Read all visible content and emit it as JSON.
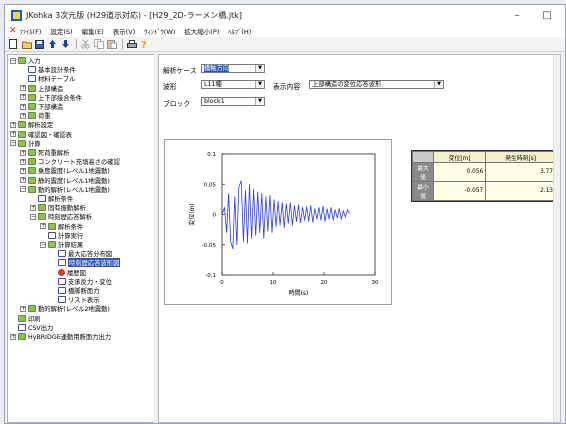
{
  "window": {
    "title": "JKohka 3次元版 (H29道示対応) - [H29_2D-ラーメン橋.jtk]",
    "minimize_glyph": "–",
    "maximize_glyph": "□"
  },
  "menu": {
    "items": [
      "ﾌｧｲﾙ(F)",
      "設定(S)",
      "編集(E)",
      "表示(V)",
      "ｳｨﾝﾄﾞｳ(W)",
      "拡大縮小(P)",
      "ﾍﾙﾌﾟ(H)"
    ]
  },
  "toolbar": {
    "icons": [
      "new-file-icon",
      "open-folder-icon",
      "save-icon",
      "move-up-icon",
      "move-down-icon",
      "cut-icon",
      "copy-icon",
      "paste-icon",
      "print-icon",
      "help-icon"
    ]
  },
  "tree": {
    "items": [
      {
        "label": "入力",
        "level": 0,
        "toggle": "−",
        "icon": "folder"
      },
      {
        "label": "基本設計条件",
        "level": 1,
        "toggle": "",
        "icon": "doc"
      },
      {
        "label": "材料テーブル",
        "level": 1,
        "toggle": "",
        "icon": "doc"
      },
      {
        "label": "上部構造",
        "level": 1,
        "toggle": "+",
        "icon": "folder"
      },
      {
        "label": "上下部接合条件",
        "level": 1,
        "toggle": "+",
        "icon": "folder"
      },
      {
        "label": "下部構造",
        "level": 1,
        "toggle": "+",
        "icon": "folder"
      },
      {
        "label": "荷重",
        "level": 1,
        "toggle": "+",
        "icon": "folder"
      },
      {
        "label": "解析設定",
        "level": 0,
        "toggle": "+",
        "icon": "folder"
      },
      {
        "label": "確認図・確認表",
        "level": 0,
        "toggle": "+",
        "icon": "folder"
      },
      {
        "label": "計算",
        "level": 0,
        "toggle": "−",
        "icon": "folder"
      },
      {
        "label": "死荷重解析",
        "level": 1,
        "toggle": "+",
        "icon": "folder"
      },
      {
        "label": "コンクリート充填高さの確認",
        "level": 1,
        "toggle": "+",
        "icon": "folder"
      },
      {
        "label": "乗度震度(レベル1地震動)",
        "level": 1,
        "toggle": "+",
        "icon": "folder"
      },
      {
        "label": "静的震度(レベル1地震動)",
        "level": 1,
        "toggle": "+",
        "icon": "folder"
      },
      {
        "label": "動的解析(レベル1地震動)",
        "level": 1,
        "toggle": "−",
        "icon": "folder"
      },
      {
        "label": "解析条件",
        "level": 2,
        "toggle": "",
        "icon": "doc"
      },
      {
        "label": "固有振動解析",
        "level": 2,
        "toggle": "+",
        "icon": "folder"
      },
      {
        "label": "時刻歴応答解析",
        "level": 2,
        "toggle": "−",
        "icon": "folder"
      },
      {
        "label": "解析条件",
        "level": 3,
        "toggle": "+",
        "icon": "folder"
      },
      {
        "label": "計算実行",
        "level": 3,
        "toggle": "",
        "icon": "doc"
      },
      {
        "label": "計算結果",
        "level": 3,
        "toggle": "−",
        "icon": "folder"
      },
      {
        "label": "最大応答分布図",
        "level": 4,
        "toggle": "",
        "icon": "doc"
      },
      {
        "label": "時刻歴応答波形図",
        "level": 4,
        "toggle": "",
        "icon": "doc",
        "selected": true
      },
      {
        "label": "履歴図",
        "level": 4,
        "toggle": "",
        "icon": "red"
      },
      {
        "label": "支承反力・変位",
        "level": 4,
        "toggle": "",
        "icon": "doc"
      },
      {
        "label": "橋脚断面力",
        "level": 4,
        "toggle": "",
        "icon": "doc"
      },
      {
        "label": "リスト表示",
        "level": 4,
        "toggle": "",
        "icon": "doc"
      },
      {
        "label": "動的解析(レベル2地震動)",
        "level": 1,
        "toggle": "+",
        "icon": "folder"
      },
      {
        "label": "印刷",
        "level": 0,
        "toggle": "",
        "icon": "folder"
      },
      {
        "label": "CSV出力",
        "level": 0,
        "toggle": "",
        "icon": "doc"
      },
      {
        "label": "HyBRIDGE連動用断面力出力",
        "level": 0,
        "toggle": "+",
        "icon": "folder"
      }
    ]
  },
  "form": {
    "case_label": "解析ケース",
    "case_value": "橋軸方向",
    "wave_label": "波形",
    "wave_value": "L11種",
    "display_label": "表示内容",
    "display_value": "上部構造の変位応答波形",
    "block_label": "ブロック",
    "block_value": "block1"
  },
  "result_table": {
    "headers": [
      "変位[m]",
      "発生時刻[s]"
    ],
    "rows": [
      {
        "label": "最大値",
        "disp": "0.056",
        "time": "3.77"
      },
      {
        "label": "最小値",
        "disp": "-0.057",
        "time": "2.13"
      }
    ]
  },
  "chart_data": {
    "type": "line",
    "xlabel": "時間(s)",
    "ylabel": "変位(m)",
    "xlim": [
      0,
      30
    ],
    "ylim": [
      -0.1,
      0.1
    ],
    "xticks": [
      "0",
      "10",
      "20",
      "30"
    ],
    "yticks": [
      "0.1",
      "0.05",
      "0",
      "-0.05",
      "-0.1"
    ],
    "line_color": "#2d3cff",
    "series": [
      {
        "x": [
          0,
          0.5,
          0.9,
          1.3,
          1.7,
          2.13,
          2.5,
          2.9,
          3.3,
          3.77,
          4.2,
          4.6,
          5.0,
          5.4,
          5.8,
          6.2,
          6.6,
          7.0,
          7.4,
          7.8,
          8.2,
          8.6,
          9.0,
          9.4,
          9.8,
          10.2,
          10.6,
          11.0,
          11.4,
          11.8,
          12.2,
          12.6,
          13.0,
          13.4,
          13.8,
          14.2,
          14.6,
          15.0,
          15.4,
          15.8,
          16.2,
          16.6,
          17.0,
          17.4,
          17.8,
          18.2,
          18.6,
          19.0,
          19.4,
          19.8,
          20.2,
          20.6,
          21.0,
          21.4,
          21.8,
          22.2,
          22.6,
          23.0,
          23.4,
          23.8,
          24.2,
          24.6,
          25.0
        ],
        "y": [
          0,
          0.012,
          -0.03,
          0.035,
          -0.045,
          -0.057,
          0.03,
          -0.05,
          0.045,
          0.056,
          -0.045,
          0.04,
          -0.048,
          0.05,
          -0.04,
          0.042,
          -0.035,
          0.038,
          -0.03,
          0.035,
          -0.04,
          0.03,
          -0.028,
          0.032,
          -0.03,
          0.025,
          -0.02,
          0.022,
          -0.018,
          0.02,
          -0.022,
          0.018,
          -0.015,
          0.02,
          -0.018,
          0.015,
          -0.012,
          0.016,
          -0.014,
          0.012,
          -0.01,
          0.013,
          -0.012,
          0.015,
          -0.013,
          0.01,
          -0.008,
          0.012,
          -0.01,
          0.014,
          -0.012,
          0.01,
          -0.008,
          0.012,
          -0.01,
          0.008,
          -0.006,
          0.01,
          -0.008,
          0.006,
          -0.004,
          0.008,
          0.002
        ]
      }
    ]
  }
}
